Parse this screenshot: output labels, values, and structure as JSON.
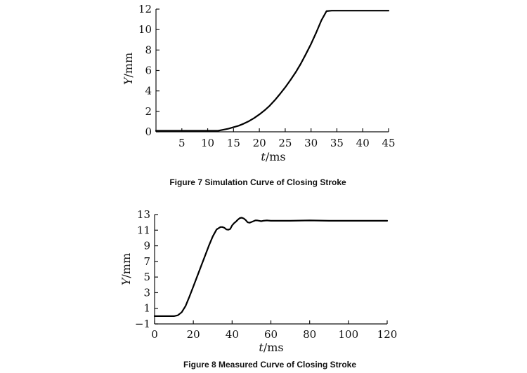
{
  "chart_data": [
    {
      "type": "line",
      "caption": "Figure 7 Simulation Curve of Closing Stroke",
      "ylabel": {
        "var": "Y",
        "unit": "/mm"
      },
      "xlabel": {
        "var": "t",
        "unit": "/ms"
      },
      "xlim": [
        0,
        45
      ],
      "ylim": [
        0,
        12
      ],
      "xticks": [
        5,
        10,
        15,
        20,
        25,
        30,
        35,
        40,
        45
      ],
      "yticks": [
        0,
        2,
        4,
        6,
        8,
        10,
        12
      ],
      "series": [
        {
          "x": [
            0,
            5,
            10,
            12,
            13,
            14,
            15,
            16,
            17,
            18,
            19,
            20,
            21,
            22,
            23,
            24,
            25,
            26,
            27,
            28,
            29,
            30,
            31,
            32,
            33,
            34,
            35,
            40,
            45
          ],
          "y": [
            0.1,
            0.1,
            0.1,
            0.1,
            0.2,
            0.3,
            0.45,
            0.6,
            0.8,
            1.05,
            1.35,
            1.7,
            2.1,
            2.55,
            3.1,
            3.7,
            4.35,
            5.05,
            5.8,
            6.65,
            7.6,
            8.6,
            9.7,
            10.9,
            11.8,
            11.85,
            11.85,
            11.85,
            11.85
          ]
        }
      ]
    },
    {
      "type": "line",
      "caption": "Figure 8 Measured Curve of Closing Stroke",
      "ylabel": {
        "var": "Y",
        "unit": "/mm"
      },
      "xlabel": {
        "var": "t",
        "unit": "/ms"
      },
      "xlim": [
        0,
        120
      ],
      "ylim": [
        -1,
        13
      ],
      "xticks": [
        0,
        20,
        40,
        60,
        80,
        100,
        120
      ],
      "yticks": [
        -1,
        1,
        3,
        5,
        7,
        9,
        11,
        13
      ],
      "ytick_labels": [
        "−1",
        "1",
        "3",
        "5",
        "7",
        "9",
        "11",
        "13"
      ],
      "series": [
        {
          "x": [
            0,
            5,
            10,
            12,
            14,
            16,
            18,
            20,
            22,
            24,
            26,
            28,
            30,
            32,
            34,
            35,
            36,
            37,
            38,
            39,
            40,
            41,
            42,
            43,
            44,
            45,
            46,
            47,
            48,
            49,
            50,
            51,
            52,
            53,
            54,
            55,
            56,
            58,
            60,
            65,
            70,
            80,
            90,
            100,
            110,
            120
          ],
          "y": [
            0,
            0,
            0,
            0.1,
            0.5,
            1.3,
            2.5,
            3.8,
            5.1,
            6.4,
            7.7,
            9.0,
            10.2,
            11.1,
            11.4,
            11.4,
            11.3,
            11.1,
            11.05,
            11.15,
            11.6,
            11.9,
            12.1,
            12.35,
            12.55,
            12.6,
            12.5,
            12.3,
            12.0,
            11.95,
            12.05,
            12.15,
            12.25,
            12.25,
            12.2,
            12.15,
            12.2,
            12.25,
            12.2,
            12.2,
            12.2,
            12.25,
            12.2,
            12.2,
            12.2,
            12.2
          ]
        }
      ]
    }
  ]
}
